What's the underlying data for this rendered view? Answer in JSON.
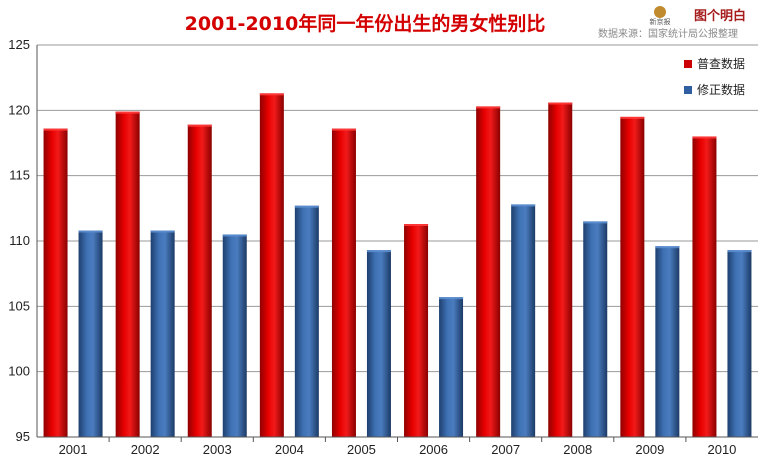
{
  "chart_data": {
    "type": "bar",
    "title": "2001-2010年同一年份出生的男女性别比",
    "categories": [
      "2001",
      "2002",
      "2003",
      "2004",
      "2005",
      "2006",
      "2007",
      "2008",
      "2009",
      "2010"
    ],
    "series": [
      {
        "name": "普查数据",
        "values": [
          118.6,
          119.9,
          118.9,
          121.3,
          118.6,
          111.3,
          120.3,
          120.6,
          119.5,
          118.0
        ]
      },
      {
        "name": "修正数据",
        "values": [
          110.8,
          110.8,
          110.5,
          112.7,
          109.3,
          105.7,
          112.8,
          111.5,
          109.6,
          109.3
        ]
      }
    ],
    "ylim": [
      95,
      125
    ],
    "yticks": [
      95,
      100,
      105,
      110,
      115,
      120,
      125
    ],
    "grid": true,
    "legend": "top-right",
    "colors": {
      "普查数据": "#cc0000",
      "修正数据": "#2f5fa0"
    }
  },
  "branding": {
    "logo_text": "图个明白",
    "logo_sub": "新京报",
    "source_text": "数据来源：国家统计局公报整理"
  }
}
